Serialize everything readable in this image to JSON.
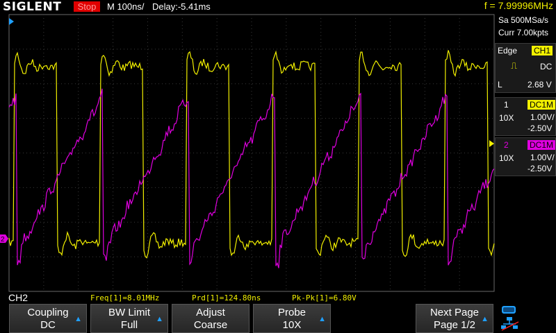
{
  "header": {
    "logo": "SIGLENT",
    "status": "Stop",
    "timebase": "M 100ns/",
    "delay": "Delay:-5.41ms",
    "frequency": "f = 7.99996MHz"
  },
  "acquisition": {
    "sample_rate": "Sa 500MSa/s",
    "memory": "Curr 7.00kpts"
  },
  "trigger": {
    "type": "Edge",
    "source": "CH1",
    "coupling": "DC",
    "level_label": "L",
    "level": "2.68 V"
  },
  "channels": [
    {
      "number": "1",
      "coupling": "DC1M",
      "probe": "10X",
      "scale": "1.00V/",
      "offset": "-2.50V",
      "color": "#f2f000"
    },
    {
      "number": "2",
      "coupling": "DC1M",
      "probe": "10X",
      "scale": "1.00V/",
      "offset": "-2.50V",
      "color": "#e000e0"
    }
  ],
  "measurements": {
    "active_channel": "CH2",
    "items": [
      "Freq[1]=8.01MHz",
      "Prd[1]=124.80ns",
      "Pk-Pk[1]=6.80V"
    ]
  },
  "menu": [
    {
      "line1": "Coupling",
      "line2": "DC",
      "has_arrow": true
    },
    {
      "line1": "BW Limit",
      "line2": "Full",
      "has_arrow": true
    },
    {
      "line1": "Adjust",
      "line2": "Coarse",
      "has_arrow": false
    },
    {
      "line1": "Probe",
      "line2": "10X",
      "has_arrow": true
    },
    {
      "line1": "Next Page",
      "line2": "Page 1/2",
      "has_arrow": true
    }
  ],
  "markers": {
    "ch2_marker": "2",
    "ch1_marker_arrow": "◀"
  },
  "colors": {
    "ch1": "#f2f000",
    "ch2": "#e000e0",
    "stop": "#e00000",
    "grid": "#4a4a4a",
    "arrow": "#1fa0ff"
  }
}
